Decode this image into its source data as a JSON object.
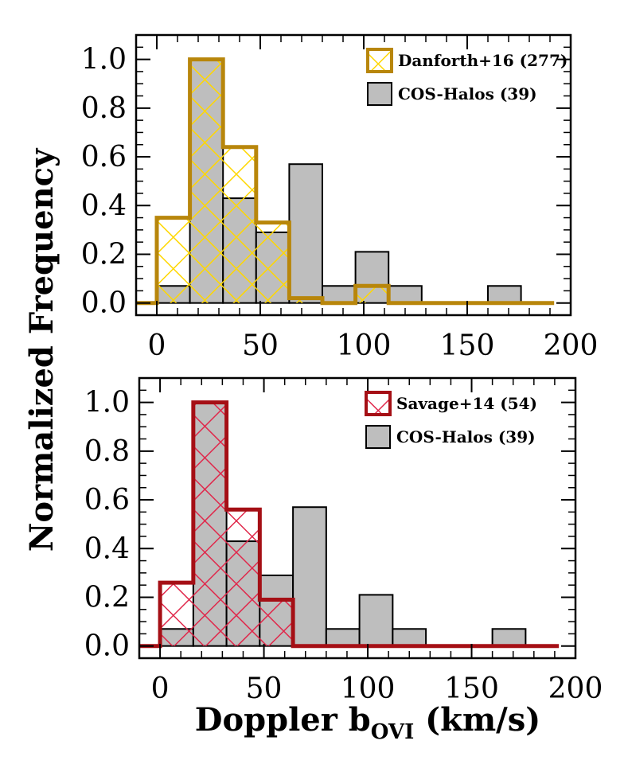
{
  "chart_data": [
    {
      "type": "histogram",
      "bin_width": 16,
      "bin_starts": [
        0,
        16,
        32,
        48,
        64,
        80,
        96,
        112,
        128,
        144,
        160
      ],
      "xlim": [
        -10,
        200
      ],
      "ylim": [
        -0.05,
        1.1
      ],
      "xticks": [
        "0",
        "50",
        "100",
        "150",
        "200"
      ],
      "yticks": [
        "0.0",
        "0.2",
        "0.4",
        "0.6",
        "0.8",
        "1.0"
      ],
      "series": [
        {
          "name": "COS-Halos (39)",
          "style": "gray-fill",
          "fill": "#bebebe",
          "edge": "#000000",
          "values": [
            0.07,
            1.0,
            0.43,
            0.29,
            0.57,
            0.07,
            0.21,
            0.07,
            0.0,
            0.0,
            0.07
          ]
        },
        {
          "name": "Danforth+16 (277)",
          "style": "crosshatch",
          "edge": "#b8860b",
          "hatch": "#ffd700",
          "values": [
            0.35,
            1.0,
            0.64,
            0.33,
            0.02,
            0.0,
            0.07,
            0.0,
            0.0,
            0.0,
            0.0
          ]
        }
      ]
    },
    {
      "type": "histogram",
      "bin_width": 16,
      "bin_starts": [
        0,
        16,
        32,
        48,
        64,
        80,
        96,
        112,
        128,
        144,
        160
      ],
      "xlim": [
        -10,
        200
      ],
      "ylim": [
        -0.05,
        1.1
      ],
      "xticks": [
        "0",
        "50",
        "100",
        "150",
        "200"
      ],
      "yticks": [
        "0.0",
        "0.2",
        "0.4",
        "0.6",
        "0.8",
        "1.0"
      ],
      "series": [
        {
          "name": "COS-Halos (39)",
          "style": "gray-fill",
          "fill": "#bebebe",
          "edge": "#000000",
          "values": [
            0.07,
            1.0,
            0.43,
            0.29,
            0.57,
            0.07,
            0.21,
            0.07,
            0.0,
            0.0,
            0.07
          ]
        },
        {
          "name": "Savage+14 (54)",
          "style": "crosshatch",
          "edge": "#a50f15",
          "hatch": "#e0284b",
          "values": [
            0.26,
            1.0,
            0.56,
            0.19,
            0.0,
            0.0,
            0.0,
            0.0,
            0.0,
            0.0,
            0.0
          ]
        }
      ]
    }
  ],
  "ylabel": "Normalized Frequency",
  "xlabel": {
    "main": "Doppler b",
    "sub": "OVI",
    "unit": " (km/s)"
  }
}
